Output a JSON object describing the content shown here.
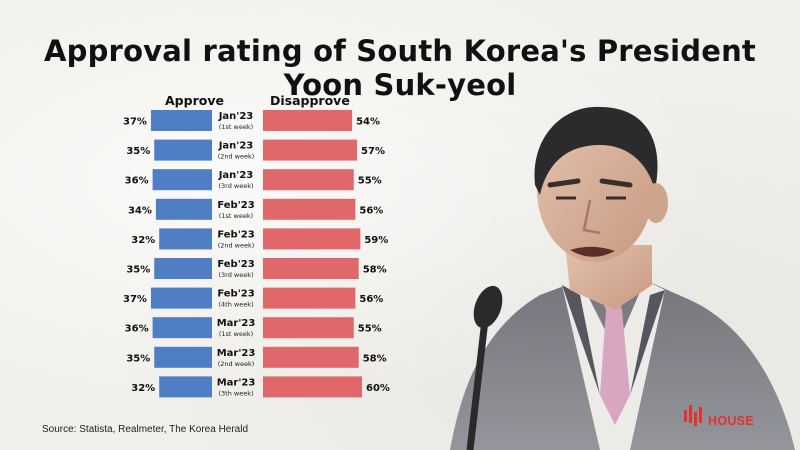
{
  "title": "Approval rating of South Korea's President Yoon Suk-yeol",
  "legend": {
    "approve": "Approve",
    "disapprove": "Disapprove"
  },
  "source": "Source: Statista, Realmeter, The Korea Herald",
  "logo": {
    "text": "HOUSE",
    "color": "#e0332f"
  },
  "colors": {
    "approve": "#4f7ec4",
    "disapprove": "#e0686a"
  },
  "chart_data": {
    "type": "bar",
    "categories": [
      {
        "label": "Jan'23",
        "sub": "(1st week)"
      },
      {
        "label": "Jan'23",
        "sub": "(2nd week)"
      },
      {
        "label": "Jan'23",
        "sub": "(3rd week)"
      },
      {
        "label": "Feb'23",
        "sub": "(1st week)"
      },
      {
        "label": "Feb'23",
        "sub": "(2nd week)"
      },
      {
        "label": "Feb'23",
        "sub": "(3rd week)"
      },
      {
        "label": "Feb'23",
        "sub": "(4th week)"
      },
      {
        "label": "Mar'23",
        "sub": "(1st week)"
      },
      {
        "label": "Mar'23",
        "sub": "(2nd week)"
      },
      {
        "label": "Mar'23",
        "sub": "(3th week)"
      }
    ],
    "series": [
      {
        "name": "Approve",
        "values": [
          37,
          35,
          36,
          34,
          32,
          35,
          37,
          36,
          35,
          32
        ],
        "labels": [
          "37%",
          "35%",
          "36%",
          "34%",
          "32%",
          "35%",
          "37%",
          "36%",
          "35%",
          "32%"
        ]
      },
      {
        "name": "Disapprove",
        "values": [
          54,
          57,
          55,
          56,
          59,
          58,
          56,
          55,
          58,
          60
        ],
        "labels": [
          "54%",
          "57%",
          "55%",
          "56%",
          "59%",
          "58%",
          "56%",
          "55%",
          "58%",
          "60%"
        ]
      }
    ],
    "orientation": "horizontal-butterfly",
    "unit": "%"
  }
}
